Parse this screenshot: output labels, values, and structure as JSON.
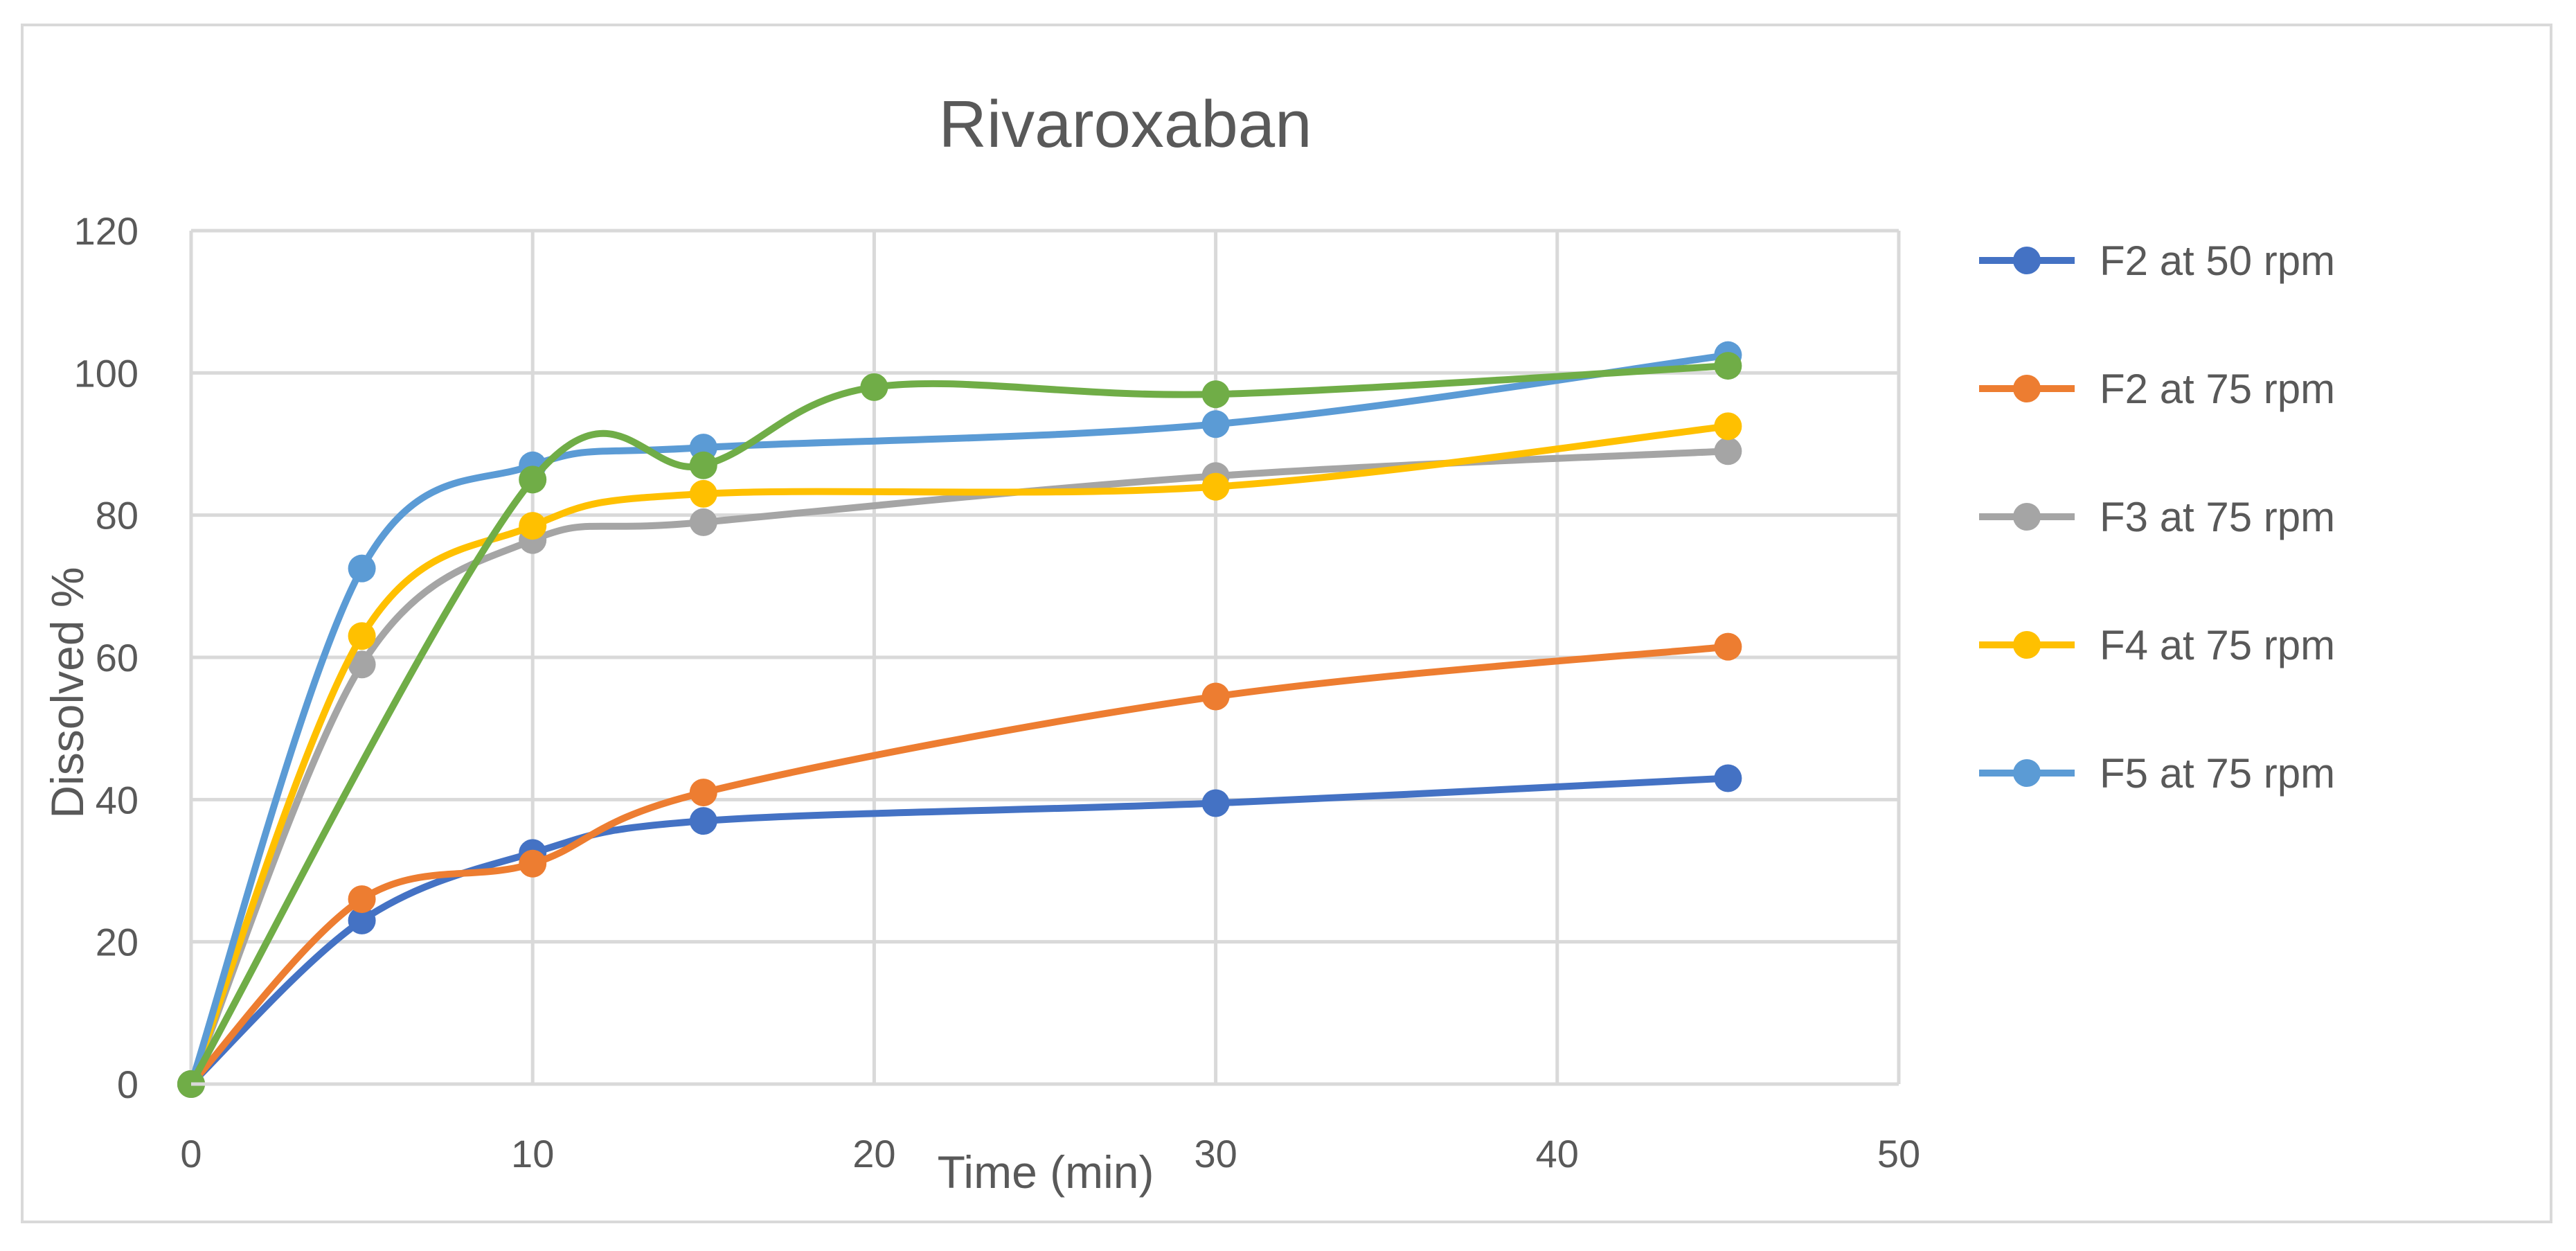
{
  "chart_data": {
    "type": "line",
    "title": "Rivaroxaban",
    "xlabel": "Time (min)",
    "ylabel": "Dissolved %",
    "xlim": [
      0,
      50
    ],
    "ylim": [
      0,
      120
    ],
    "xticks": [
      0,
      10,
      20,
      30,
      40,
      50
    ],
    "yticks": [
      0,
      20,
      40,
      60,
      80,
      100,
      120
    ],
    "xtick_labels": [
      "0",
      "10",
      "20",
      "30",
      "40",
      "50"
    ],
    "ytick_labels": [
      "0",
      "20",
      "40",
      "60",
      "80",
      "100",
      "120"
    ],
    "grid": true,
    "legend_position": "right",
    "series": [
      {
        "name": "F2 at 50 rpm",
        "color": "#4472C4",
        "in_legend": true,
        "x": [
          0,
          5,
          10,
          15,
          30,
          45
        ],
        "y": [
          0,
          23,
          32.5,
          37,
          39.5,
          43
        ]
      },
      {
        "name": "F2 at 75 rpm",
        "color": "#ED7D31",
        "in_legend": true,
        "x": [
          0,
          5,
          10,
          15,
          30,
          45
        ],
        "y": [
          0,
          26,
          31,
          41,
          54.5,
          61.5
        ]
      },
      {
        "name": "F3 at 75 rpm",
        "color": "#A5A5A5",
        "in_legend": true,
        "x": [
          0,
          5,
          10,
          15,
          30,
          45
        ],
        "y": [
          0,
          59,
          76.5,
          79,
          85.5,
          89
        ]
      },
      {
        "name": "F4 at 75 rpm",
        "color": "#FFC000",
        "in_legend": true,
        "x": [
          0,
          5,
          10,
          15,
          30,
          45
        ],
        "y": [
          0,
          63,
          78.5,
          83,
          84,
          92.5
        ]
      },
      {
        "name": "F5 at 75 rpm",
        "color": "#5B9BD5",
        "in_legend": true,
        "x": [
          0,
          5,
          10,
          15,
          30,
          45
        ],
        "y": [
          0,
          72.5,
          87,
          89.5,
          92.8,
          102.5
        ]
      },
      {
        "name": "",
        "color": "#70AD47",
        "in_legend": false,
        "x": [
          0,
          10,
          15,
          20,
          30,
          45
        ],
        "y": [
          0,
          85,
          87,
          98,
          97,
          101
        ]
      }
    ]
  }
}
